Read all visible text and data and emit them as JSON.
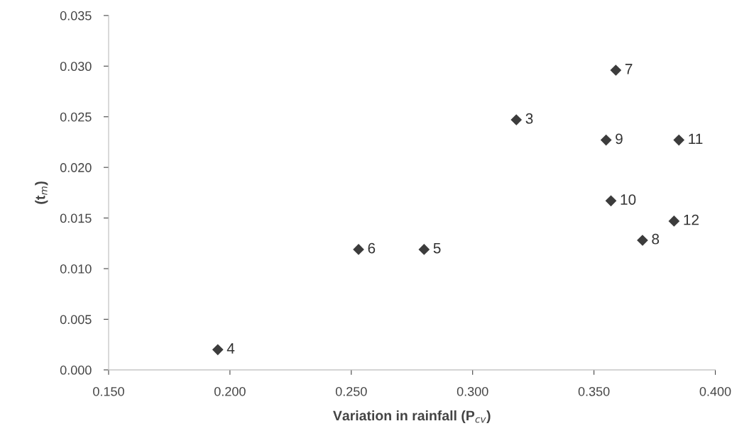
{
  "chart_data": {
    "type": "scatter",
    "xlabel": "Variation in rainfall (P$_{cv}$)",
    "ylabel": "(t$_{m}$)",
    "x": [
      0.318,
      0.195,
      0.28,
      0.253,
      0.359,
      0.37,
      0.355,
      0.357,
      0.385,
      0.383
    ],
    "series": [
      {
        "color": "#3c3c3c",
        "values": [
          0.0247,
          0.002,
          0.0119,
          0.0119,
          0.0296,
          0.0128,
          0.0227,
          0.0167,
          0.0227,
          0.0147
        ]
      }
    ],
    "annotations": [
      {
        "text": "3",
        "x": 0.318,
        "y": 0.0247
      },
      {
        "text": "4",
        "x": 0.195,
        "y": 0.002
      },
      {
        "text": "5",
        "x": 0.28,
        "y": 0.0119
      },
      {
        "text": "6",
        "x": 0.253,
        "y": 0.0119
      },
      {
        "text": "7",
        "x": 0.359,
        "y": 0.0296
      },
      {
        "text": "8",
        "x": 0.37,
        "y": 0.0128
      },
      {
        "text": "9",
        "x": 0.355,
        "y": 0.0227
      },
      {
        "text": "10",
        "x": 0.357,
        "y": 0.0167
      },
      {
        "text": "11",
        "x": 0.385,
        "y": 0.0227
      },
      {
        "text": "12",
        "x": 0.383,
        "y": 0.0147
      }
    ],
    "marker": "diamond",
    "grid": false,
    "legend": false,
    "xlim": [
      0.15,
      0.4
    ],
    "xticks": [
      {
        "value": 0.15,
        "label": "0.150"
      },
      {
        "value": 0.2,
        "label": "0.200"
      },
      {
        "value": 0.25,
        "label": "0.250"
      },
      {
        "value": 0.3,
        "label": "0.300"
      },
      {
        "value": 0.35,
        "label": "0.350"
      },
      {
        "value": 0.4,
        "label": "0.400"
      }
    ],
    "ylim": [
      0,
      0.035
    ],
    "yticks": [
      {
        "value": 0,
        "label": "0.000"
      },
      {
        "value": 0.005,
        "label": "0.005"
      },
      {
        "value": 0.01,
        "label": "0.010"
      },
      {
        "value": 0.015,
        "label": "0.015"
      },
      {
        "value": 0.02,
        "label": "0.020"
      },
      {
        "value": 0.025,
        "label": "0.025"
      },
      {
        "value": 0.03,
        "label": "0.030"
      },
      {
        "value": 0.035,
        "label": "0.035"
      }
    ]
  }
}
